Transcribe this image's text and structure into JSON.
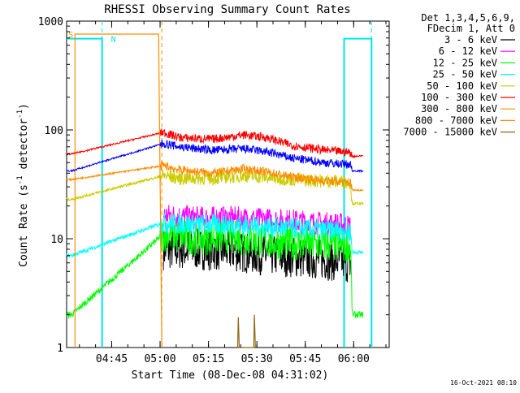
{
  "chart_data": {
    "type": "line",
    "title": "RHESSI Observing Summary Count Rates",
    "xlabel": "Start Time (08-Dec-08 04:31:02)",
    "ylabel": "Count Rate (s⁻¹ detector⁻¹)",
    "ylabel_parts": {
      "main": "Count Rate (s",
      "sup1": "-1",
      "mid": " detector",
      "sup2": "-1",
      "end": ")"
    },
    "yscale": "log",
    "ylim": [
      1,
      1000
    ],
    "xlim": [
      "04:31:02",
      "06:11:00"
    ],
    "x_ticks": [
      "04:45",
      "05:00",
      "05:15",
      "05:30",
      "05:45",
      "06:00"
    ],
    "y_ticks": [
      "1",
      "10",
      "100",
      "1000"
    ],
    "grid": false,
    "legend_header": [
      "Det 1,3,4,5,6,9,",
      "FDecim 1, Att 0"
    ],
    "legend_placement": "right",
    "timestamp": "16-Oct-2021 08:10",
    "x_units": "minutes after 04:31:02",
    "series": [
      {
        "name": "3 - 6 keV",
        "color": "#000000",
        "points": [
          [
            30,
            8.0
          ],
          [
            40,
            8.0
          ],
          [
            50,
            7.8
          ],
          [
            60,
            7.2
          ],
          [
            70,
            6.8
          ],
          [
            79,
            6.5
          ],
          [
            85,
            6.2
          ],
          [
            88,
            6.0
          ]
        ],
        "noise": 0.12
      },
      {
        "name": "6 - 12 keV",
        "color": "#ff00ff",
        "points": [
          [
            30,
            16.5
          ],
          [
            40,
            15.5
          ],
          [
            50,
            15.5
          ],
          [
            60,
            15.0
          ],
          [
            70,
            14.5
          ],
          [
            79,
            13.8
          ],
          [
            85,
            13.5
          ],
          [
            88,
            13.0
          ]
        ],
        "noise": 0.07
      },
      {
        "name": "12 - 25 keV",
        "color": "#00ff00",
        "points": [
          [
            0,
            2.0
          ],
          [
            1.5,
            2.0
          ],
          [
            30,
            11.0
          ],
          [
            40,
            10.0
          ],
          [
            50,
            10.5
          ],
          [
            60,
            9.5
          ],
          [
            70,
            9.0
          ],
          [
            79,
            8.8
          ],
          [
            85,
            8.7
          ],
          [
            88,
            8.5
          ],
          [
            88.5,
            2.0
          ],
          [
            92,
            2.0
          ]
        ],
        "noise": 0.1
      },
      {
        "name": "25 - 50 keV",
        "color": "#00ffff",
        "points": [
          [
            0,
            7.0
          ],
          [
            1.5,
            7.0
          ],
          [
            30,
            14.0
          ],
          [
            40,
            13.5
          ],
          [
            50,
            13.5
          ],
          [
            60,
            13.0
          ],
          [
            70,
            12.5
          ],
          [
            79,
            12.0
          ],
          [
            85,
            12.0
          ],
          [
            88,
            11.5
          ],
          [
            88.5,
            7.5
          ],
          [
            92,
            7.5
          ]
        ],
        "noise": 0.06
      },
      {
        "name": "50 - 100 keV",
        "color": "#cccc00",
        "points": [
          [
            0,
            23.0
          ],
          [
            1.5,
            23.0
          ],
          [
            30,
            38.0
          ],
          [
            35,
            36.0
          ],
          [
            45,
            36.0
          ],
          [
            55,
            38.0
          ],
          [
            65,
            36.0
          ],
          [
            75,
            34.5
          ],
          [
            85,
            33.5
          ],
          [
            88,
            33.0
          ],
          [
            88.5,
            21.0
          ],
          [
            92,
            21.0
          ]
        ],
        "noise": 0.04
      },
      {
        "name": "100 - 300 keV",
        "color": "#ff0000",
        "points": [
          [
            0,
            60.0
          ],
          [
            1.5,
            60.0
          ],
          [
            30,
            95.0
          ],
          [
            35,
            85.0
          ],
          [
            45,
            82.0
          ],
          [
            55,
            90.0
          ],
          [
            62,
            85.0
          ],
          [
            70,
            72.0
          ],
          [
            80,
            65.0
          ],
          [
            88,
            62.0
          ],
          [
            88.5,
            57.0
          ],
          [
            92,
            58.0
          ]
        ],
        "noise": 0.025
      },
      {
        "name": "300 - 800 keV",
        "color": "#ff8c00",
        "points": [
          [
            0,
            35.0
          ],
          [
            1.5,
            35.0
          ],
          [
            30,
            47.0
          ],
          [
            35,
            43.0
          ],
          [
            45,
            40.0
          ],
          [
            55,
            44.0
          ],
          [
            62,
            41.0
          ],
          [
            70,
            37.0
          ],
          [
            80,
            34.0
          ],
          [
            88,
            33.0
          ],
          [
            88.5,
            28.0
          ],
          [
            92,
            28.0
          ]
        ],
        "noise": 0.025
      },
      {
        "name": "800 - 7000 keV",
        "color": "#ff8c00",
        "points": [
          [
            2.6,
            1.0
          ],
          [
            2.6,
            760.0
          ],
          [
            28.5,
            760.0
          ],
          [
            29.5,
            1.0
          ]
        ],
        "noise": 0
      },
      {
        "name": "7000 - 15000 keV",
        "color": "#8b6914",
        "points": [
          [
            53,
            1.0
          ],
          [
            53.2,
            1.9
          ],
          [
            53.5,
            1.0
          ],
          [
            58,
            1.0
          ],
          [
            58.2,
            2.0
          ],
          [
            58.5,
            1.0
          ]
        ],
        "noise": 0
      }
    ],
    "extra_series": [
      {
        "role": "saa-night-flags",
        "color": "#00e5ee",
        "points": [
          [
            0,
            690.0
          ],
          [
            11,
            690.0
          ],
          [
            11,
            1.0
          ]
        ],
        "points_b": [
          [
            86,
            1.0
          ],
          [
            86,
            690.0
          ],
          [
            94.5,
            690.0
          ],
          [
            94.5,
            1.0
          ]
        ]
      },
      {
        "role": "blue-band",
        "color": "#0000ff",
        "points": [
          [
            0,
            42.0
          ],
          [
            1.5,
            42.0
          ],
          [
            30,
            75.0
          ],
          [
            35,
            70.0
          ],
          [
            45,
            65.0
          ],
          [
            55,
            67.0
          ],
          [
            62,
            63.0
          ],
          [
            70,
            55.0
          ],
          [
            80,
            50.0
          ],
          [
            88,
            48.0
          ],
          [
            88.5,
            42.0
          ],
          [
            92,
            42.0
          ]
        ],
        "noise": 0.025
      }
    ],
    "markers": [
      {
        "label": "S",
        "color": "#ff8c00",
        "x": 0.3,
        "y": 760.0
      },
      {
        "label": "N",
        "color": "#00e5ee",
        "x": 13.5,
        "y": 690.0
      }
    ],
    "vlines_dashed": [
      {
        "x": 11.0,
        "color": "#00e5ee"
      },
      {
        "x": 29.5,
        "color": "#ff8c00"
      },
      {
        "x": 94.5,
        "color": "#00e5ee"
      }
    ]
  }
}
